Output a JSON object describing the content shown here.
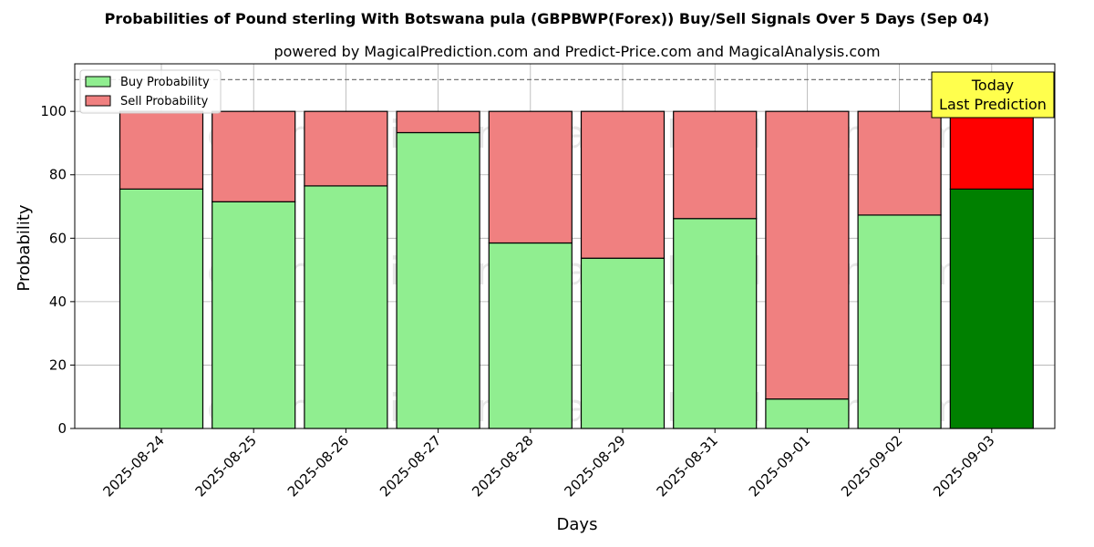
{
  "chart_data": {
    "type": "bar",
    "stacked": true,
    "title": "Probabilities of Pound sterling With Botswana pula (GBPBWP(Forex)) Buy/Sell Signals Over 5 Days (Sep 04)",
    "subtitle": "powered by MagicalPrediction.com and Predict-Price.com and MagicalAnalysis.com",
    "xlabel": "Days",
    "ylabel": "Probability",
    "ylim": [
      0,
      115
    ],
    "yticks": [
      0,
      20,
      40,
      60,
      80,
      100
    ],
    "reference_line": 110,
    "grid": true,
    "legend_position": "top-left",
    "categories": [
      "2025-08-24",
      "2025-08-25",
      "2025-08-26",
      "2025-08-27",
      "2025-08-28",
      "2025-08-29",
      "2025-08-31",
      "2025-09-01",
      "2025-09-02",
      "2025-09-03"
    ],
    "series": [
      {
        "name": "Buy Probability",
        "color": "#90ee90",
        "values": [
          75.5,
          71.5,
          76.5,
          93.3,
          58.5,
          53.7,
          66.2,
          9.3,
          67.3,
          75.5
        ]
      },
      {
        "name": "Sell Probability",
        "color": "#f08080",
        "values": [
          24.5,
          28.5,
          23.5,
          6.7,
          41.5,
          46.3,
          33.8,
          90.7,
          32.7,
          24.5
        ]
      }
    ],
    "highlight": {
      "index": 9,
      "buy_color": "#008000",
      "sell_color": "#ff0000"
    },
    "annotation": {
      "lines": [
        "Today",
        "Last Prediction"
      ],
      "background": "#ffff4d"
    },
    "watermarks": [
      "MagicalAnalysis.com",
      "MagicalPrediction.com",
      "MagicalAnalysis.com",
      "MagicalPrediction.com",
      "MagicalAnalysis.com",
      "MagicalPrediction.com"
    ]
  }
}
